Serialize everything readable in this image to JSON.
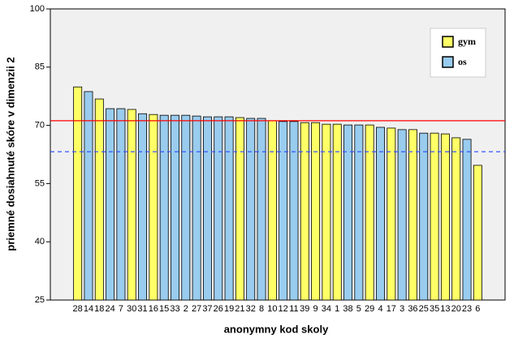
{
  "chart_data": {
    "type": "bar",
    "x_label": "anonymny kod skoly",
    "y_label": "priemné dosiahnuté skóre v dimenzii 2",
    "categories": [
      "28",
      "14",
      "18",
      "24",
      "7",
      "30",
      "31",
      "16",
      "15",
      "33",
      "2",
      "27",
      "37",
      "26",
      "19",
      "21",
      "32",
      "8",
      "10",
      "12",
      "11",
      "39",
      "9",
      "34",
      "1",
      "38",
      "5",
      "29",
      "4",
      "17",
      "3",
      "36",
      "25",
      "35",
      "13",
      "20",
      "23",
      "6"
    ],
    "series": [
      {
        "name": "gym",
        "color": "#ffff66",
        "values": [
          79.9,
          null,
          76.8,
          null,
          null,
          74.1,
          null,
          72.8,
          null,
          null,
          null,
          null,
          null,
          null,
          null,
          72.0,
          null,
          null,
          71.2,
          null,
          null,
          70.7,
          70.7,
          70.3,
          70.3,
          null,
          null,
          70.1,
          null,
          69.3,
          null,
          68.9,
          null,
          68.0,
          67.8,
          66.8,
          null,
          59.7
        ]
      },
      {
        "name": "os",
        "color": "#99ccee",
        "values": [
          null,
          78.7,
          null,
          74.3,
          74.3,
          null,
          73.0,
          null,
          72.6,
          72.6,
          72.6,
          72.4,
          72.2,
          72.2,
          72.2,
          null,
          71.8,
          71.8,
          null,
          71.0,
          71.0,
          null,
          null,
          null,
          null,
          70.1,
          70.1,
          null,
          69.5,
          null,
          68.9,
          null,
          68.0,
          null,
          null,
          null,
          66.4,
          null
        ]
      }
    ],
    "reference_lines": [
      {
        "value": 71.2,
        "color": "#ff0000",
        "style": "solid"
      },
      {
        "value": 63.2,
        "color": "#3355ff",
        "style": "dashed"
      }
    ],
    "ylim": [
      25,
      100
    ],
    "yticks": [
      25,
      40,
      55,
      70,
      85,
      100
    ],
    "legend": "upper right"
  }
}
